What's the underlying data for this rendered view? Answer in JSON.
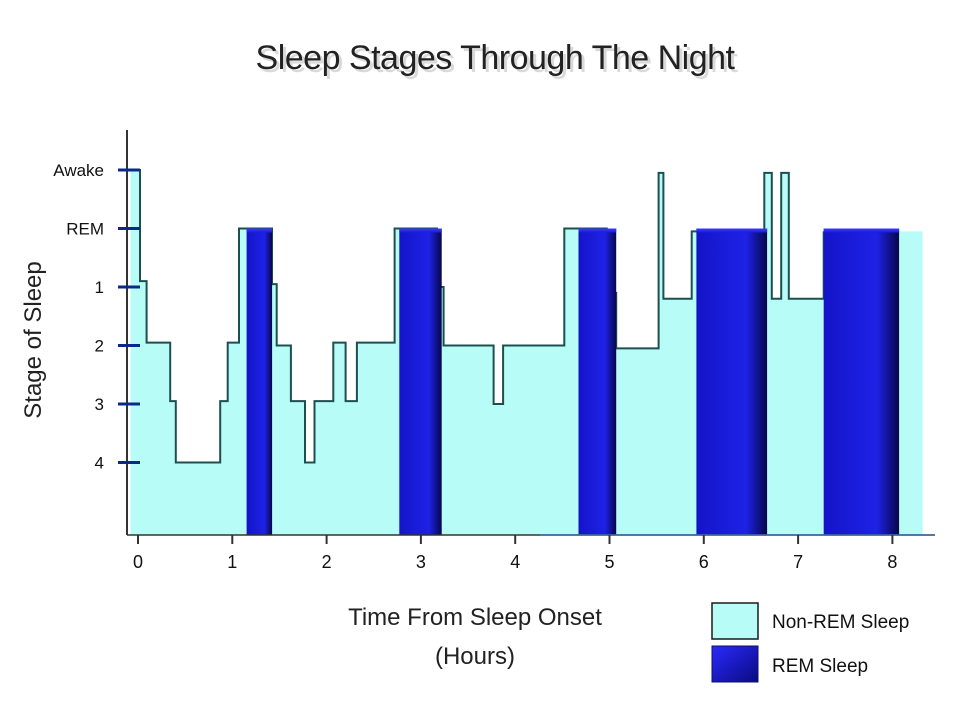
{
  "chart_data": {
    "type": "area",
    "title": "Sleep Stages Through The Night",
    "xlabel_line1": "Time From Sleep Onset",
    "xlabel_line2": "(Hours)",
    "ylabel": "Stage of Sleep",
    "x_ticks": [
      0,
      1,
      2,
      3,
      4,
      5,
      6,
      7,
      8
    ],
    "x_tick_labels": [
      "0",
      "1",
      "2",
      "3",
      "4",
      "5",
      "6",
      "7",
      "8"
    ],
    "xlim": [
      -0.1,
      8.4
    ],
    "y_categories": [
      "Awake",
      "REM",
      "1",
      "2",
      "3",
      "4"
    ],
    "y_levels": [
      0,
      1,
      2,
      3,
      4,
      5
    ],
    "ylim": [
      0,
      6.1
    ],
    "series": [
      {
        "name": "Non-REM Sleep",
        "color": "#b8fcf7",
        "stroke": "#1c4f4f",
        "points": [
          [
            -0.1,
            0.0
          ],
          [
            0.0,
            0.0
          ],
          [
            0.0,
            1.9
          ],
          [
            0.07,
            1.9
          ],
          [
            0.07,
            2.95
          ],
          [
            0.32,
            2.95
          ],
          [
            0.32,
            3.95
          ],
          [
            0.38,
            3.95
          ],
          [
            0.38,
            5.0
          ],
          [
            0.85,
            5.0
          ],
          [
            0.85,
            3.95
          ],
          [
            0.93,
            3.95
          ],
          [
            0.93,
            2.95
          ],
          [
            1.05,
            2.95
          ],
          [
            1.05,
            1.0
          ],
          [
            1.4,
            1.0
          ],
          [
            1.4,
            1.95
          ],
          [
            1.45,
            1.95
          ],
          [
            1.45,
            3.0
          ],
          [
            1.6,
            3.0
          ],
          [
            1.6,
            3.95
          ],
          [
            1.75,
            3.95
          ],
          [
            1.75,
            5.0
          ],
          [
            1.85,
            5.0
          ],
          [
            1.85,
            3.95
          ],
          [
            2.05,
            3.95
          ],
          [
            2.05,
            2.95
          ],
          [
            2.18,
            2.95
          ],
          [
            2.18,
            3.95
          ],
          [
            2.3,
            3.95
          ],
          [
            2.3,
            2.95
          ],
          [
            2.7,
            2.95
          ],
          [
            2.7,
            1.0
          ],
          [
            3.15,
            1.0
          ],
          [
            3.15,
            2.0
          ],
          [
            3.22,
            2.0
          ],
          [
            3.22,
            3.0
          ],
          [
            3.75,
            3.0
          ],
          [
            3.75,
            4.0
          ],
          [
            3.85,
            4.0
          ],
          [
            3.85,
            3.0
          ],
          [
            4.5,
            3.0
          ],
          [
            4.5,
            1.0
          ],
          [
            4.95,
            1.0
          ],
          [
            4.95,
            2.1
          ],
          [
            5.05,
            2.1
          ],
          [
            5.05,
            3.05
          ],
          [
            5.5,
            3.05
          ],
          [
            5.5,
            0.05
          ],
          [
            5.55,
            0.05
          ],
          [
            5.55,
            2.2
          ],
          [
            5.85,
            2.2
          ],
          [
            5.85,
            1.05
          ],
          [
            6.62,
            1.05
          ],
          [
            6.62,
            0.05
          ],
          [
            6.7,
            0.05
          ],
          [
            6.7,
            2.2
          ],
          [
            6.8,
            2.2
          ],
          [
            6.8,
            0.05
          ],
          [
            6.88,
            0.05
          ],
          [
            6.88,
            2.2
          ],
          [
            7.25,
            2.2
          ],
          [
            7.25,
            1.05
          ]
        ]
      },
      {
        "name": "REM Sleep",
        "color": "#1a1adb",
        "periods": [
          [
            1.13,
            1.4
          ],
          [
            2.75,
            3.2
          ],
          [
            4.65,
            5.05
          ],
          [
            5.9,
            6.65
          ],
          [
            7.25,
            8.05
          ]
        ],
        "level": "REM"
      }
    ],
    "legend": [
      {
        "label": "Non-REM Sleep",
        "color": "#b8fcf7"
      },
      {
        "label": "REM Sleep",
        "color": "#1a1adb"
      }
    ],
    "legend_position": "bottom-right",
    "grid": false
  }
}
